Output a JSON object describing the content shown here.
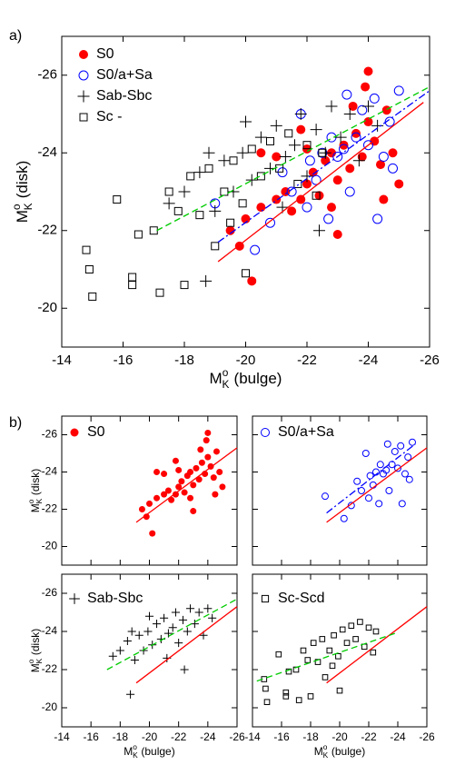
{
  "chart_data": [
    {
      "type": "scatter",
      "panel_label": "a)",
      "x_label": {
        "symbol": "M",
        "sup": "o",
        "sub": "K",
        "text": "(bulge)"
      },
      "y_label": {
        "symbol": "M",
        "sup": "o",
        "sub": "K",
        "text": "(disk)"
      },
      "xlim": [
        -14,
        -26
      ],
      "ylim": [
        -19,
        -27
      ],
      "xticks": [
        -14,
        -16,
        -18,
        -20,
        -22,
        -24,
        -26
      ],
      "yticks": [
        -20,
        -22,
        -24,
        -26
      ],
      "show_xtick_labels": true,
      "show_ytick_labels": true,
      "series": [
        {
          "name": "S0",
          "color": "#ff0000",
          "marker": "filled-circle",
          "x": [
            -20.2,
            -19.5,
            -20.0,
            -20.5,
            -21.0,
            -21.3,
            -21.5,
            -21.8,
            -22.0,
            -22.2,
            -22.4,
            -22.6,
            -22.8,
            -23.0,
            -23.2,
            -23.4,
            -23.6,
            -23.8,
            -24.0,
            -24.0,
            -24.2,
            -24.4,
            -24.6,
            -24.8,
            -25.0,
            -23.0,
            -22.0,
            -21.0,
            -20.5,
            -23.5,
            -24.5,
            -22.8,
            -21.8,
            -19.8,
            -23.9
          ],
          "values": [
            -20.7,
            -22.0,
            -22.3,
            -22.6,
            -22.8,
            -23.0,
            -22.5,
            -22.8,
            -23.2,
            -23.5,
            -22.9,
            -23.8,
            -24.0,
            -23.3,
            -24.2,
            -23.6,
            -24.5,
            -23.9,
            -24.8,
            -26.1,
            -24.3,
            -23.7,
            -25.1,
            -24.0,
            -23.2,
            -21.9,
            -24.1,
            -23.9,
            -24.0,
            -25.2,
            -22.8,
            -22.6,
            -24.6,
            -21.6,
            -25.7
          ]
        },
        {
          "name": "S0/a+Sa",
          "color": "#0000ff",
          "marker": "circle",
          "x": [
            -20.3,
            -19.0,
            -20.8,
            -21.5,
            -22.0,
            -22.3,
            -22.5,
            -22.7,
            -23.0,
            -23.2,
            -23.4,
            -23.6,
            -23.8,
            -24.0,
            -24.2,
            -24.5,
            -24.8,
            -25.0,
            -24.3,
            -21.8,
            -23.3,
            -22.8,
            -21.2,
            -24.7,
            -22.1
          ],
          "values": [
            -21.5,
            -22.7,
            -22.2,
            -23.0,
            -22.6,
            -23.3,
            -24.0,
            -22.3,
            -23.9,
            -24.1,
            -23.0,
            -24.4,
            -25.1,
            -24.2,
            -25.4,
            -23.9,
            -23.6,
            -25.6,
            -22.3,
            -25.0,
            -25.5,
            -24.4,
            -23.5,
            -24.8,
            -23.8
          ]
        },
        {
          "name": "Sab-Sbc",
          "color": "#000000",
          "marker": "plus",
          "x": [
            -18.7,
            -17.5,
            -18.0,
            -18.5,
            -19.0,
            -19.3,
            -19.6,
            -19.9,
            -20.2,
            -20.5,
            -20.8,
            -21.0,
            -21.3,
            -21.6,
            -21.8,
            -22.0,
            -22.3,
            -22.6,
            -22.8,
            -23.1,
            -23.4,
            -23.7,
            -24.0,
            -24.3,
            -21.2,
            -22.4,
            -20.0,
            -18.8
          ],
          "values": [
            -20.7,
            -22.7,
            -23.0,
            -23.5,
            -22.5,
            -23.8,
            -23.0,
            -24.0,
            -23.3,
            -24.4,
            -23.6,
            -24.7,
            -23.9,
            -24.2,
            -25.0,
            -23.4,
            -24.6,
            -24.0,
            -25.2,
            -24.4,
            -25.0,
            -23.8,
            -25.2,
            -24.7,
            -22.6,
            -22.0,
            -24.8,
            -24.0
          ]
        },
        {
          "name": "Sc -",
          "color": "#000000",
          "marker": "square",
          "x": [
            -14.8,
            -14.9,
            -15.0,
            -15.8,
            -16.3,
            -16.3,
            -16.5,
            -17.0,
            -17.2,
            -17.5,
            -17.8,
            -18.0,
            -18.2,
            -18.5,
            -18.8,
            -19.0,
            -19.3,
            -19.6,
            -19.9,
            -20.2,
            -20.5,
            -20.8,
            -21.1,
            -21.4,
            -21.7,
            -22.0,
            -22.3,
            -20.0,
            -19.5,
            -22.5
          ],
          "values": [
            -21.5,
            -21.0,
            -20.3,
            -22.8,
            -20.8,
            -20.6,
            -21.9,
            -22.0,
            -20.4,
            -23.0,
            -22.5,
            -20.6,
            -23.4,
            -22.4,
            -23.6,
            -21.6,
            -23.0,
            -23.8,
            -22.7,
            -24.1,
            -23.4,
            -24.3,
            -23.6,
            -24.5,
            -23.2,
            -24.2,
            -22.9,
            -20.9,
            -22.2,
            -24.0
          ]
        }
      ],
      "lines": [
        {
          "color": "#ff0000",
          "dash": "solid",
          "x": [
            -19.1,
            -25.8
          ],
          "values": [
            -21.2,
            -25.3
          ]
        },
        {
          "color": "#0000ff",
          "dash": "dashdot",
          "x": [
            -19.1,
            -26
          ],
          "values": [
            -21.7,
            -25.6
          ]
        },
        {
          "color": "#00cc00",
          "dash": "dashed",
          "x": [
            -17.1,
            -26
          ],
          "values": [
            -22.0,
            -25.7
          ]
        }
      ]
    },
    {
      "type": "scatter",
      "panel_label": "b)",
      "y_label": {
        "symbol": "M",
        "sup": "o",
        "sub": "K",
        "text": "(disk)"
      },
      "xlim": [
        -14,
        -26
      ],
      "ylim": [
        -19,
        -27
      ],
      "xticks": [
        -14,
        -16,
        -18,
        -20,
        -22,
        -24,
        -26
      ],
      "yticks": [
        -20,
        -22,
        -24,
        -26
      ],
      "show_xtick_labels": false,
      "show_ytick_labels": true,
      "series": [
        {
          "name": "S0",
          "color": "#ff0000",
          "marker": "filled-circle",
          "x": [
            -20.2,
            -19.5,
            -20.0,
            -20.5,
            -21.0,
            -21.3,
            -21.5,
            -21.8,
            -22.0,
            -22.2,
            -22.4,
            -22.6,
            -22.8,
            -23.0,
            -23.2,
            -23.4,
            -23.6,
            -23.8,
            -24.0,
            -24.0,
            -24.2,
            -24.4,
            -24.6,
            -24.8,
            -25.0,
            -23.0,
            -22.0,
            -21.0,
            -20.5,
            -23.5,
            -24.5,
            -22.8,
            -21.8,
            -19.8,
            -23.9
          ],
          "values": [
            -20.7,
            -22.0,
            -22.3,
            -22.6,
            -22.8,
            -23.0,
            -22.5,
            -22.8,
            -23.2,
            -23.5,
            -22.9,
            -23.8,
            -24.0,
            -23.3,
            -24.2,
            -23.6,
            -24.5,
            -23.9,
            -24.8,
            -26.1,
            -24.3,
            -23.7,
            -25.1,
            -24.0,
            -23.2,
            -21.9,
            -24.1,
            -23.9,
            -24.0,
            -25.2,
            -22.8,
            -22.6,
            -24.6,
            -21.6,
            -25.7
          ]
        }
      ],
      "lines": [
        {
          "color": "#ff0000",
          "dash": "solid",
          "x": [
            -19.1,
            -26
          ],
          "values": [
            -21.3,
            -25.3
          ]
        }
      ]
    },
    {
      "type": "scatter",
      "xlim": [
        -14,
        -26
      ],
      "ylim": [
        -19,
        -27
      ],
      "xticks": [
        -14,
        -16,
        -18,
        -20,
        -22,
        -24,
        -26
      ],
      "yticks": [
        -20,
        -22,
        -24,
        -26
      ],
      "show_xtick_labels": false,
      "show_ytick_labels": false,
      "series": [
        {
          "name": "S0/a+Sa",
          "color": "#0000ff",
          "marker": "circle",
          "x": [
            -20.3,
            -19.0,
            -20.8,
            -21.5,
            -22.0,
            -22.3,
            -22.5,
            -22.7,
            -23.0,
            -23.2,
            -23.4,
            -23.6,
            -23.8,
            -24.0,
            -24.2,
            -24.5,
            -24.8,
            -25.0,
            -24.3,
            -21.8,
            -23.3,
            -22.8,
            -21.2,
            -24.7,
            -22.1
          ],
          "values": [
            -21.5,
            -22.7,
            -22.2,
            -23.0,
            -22.6,
            -23.3,
            -24.0,
            -22.3,
            -23.9,
            -24.1,
            -23.0,
            -24.4,
            -25.1,
            -24.2,
            -25.4,
            -23.9,
            -23.6,
            -25.6,
            -22.3,
            -25.0,
            -25.5,
            -24.4,
            -23.5,
            -24.8,
            -23.8
          ]
        }
      ],
      "lines": [
        {
          "color": "#ff0000",
          "dash": "solid",
          "x": [
            -19.1,
            -26
          ],
          "values": [
            -21.3,
            -25.3
          ]
        },
        {
          "color": "#0000ff",
          "dash": "dashdot",
          "x": [
            -19.1,
            -25.2
          ],
          "values": [
            -21.8,
            -25.5
          ]
        }
      ]
    },
    {
      "type": "scatter",
      "x_label": {
        "symbol": "M",
        "sup": "o",
        "sub": "K",
        "text": "(bulge)"
      },
      "y_label": {
        "symbol": "M",
        "sup": "o",
        "sub": "K",
        "text": "(disk)"
      },
      "xlim": [
        -14,
        -26
      ],
      "ylim": [
        -19,
        -27
      ],
      "xticks": [
        -14,
        -16,
        -18,
        -20,
        -22,
        -24,
        -26
      ],
      "yticks": [
        -20,
        -22,
        -24,
        -26
      ],
      "show_xtick_labels": true,
      "show_ytick_labels": true,
      "series": [
        {
          "name": "Sab-Sbc",
          "color": "#000000",
          "marker": "plus",
          "x": [
            -18.7,
            -17.5,
            -18.0,
            -18.5,
            -19.0,
            -19.3,
            -19.6,
            -19.9,
            -20.2,
            -20.5,
            -20.8,
            -21.0,
            -21.3,
            -21.6,
            -21.8,
            -22.0,
            -22.3,
            -22.6,
            -22.8,
            -23.1,
            -23.4,
            -23.7,
            -24.0,
            -24.3,
            -21.2,
            -22.4,
            -20.0,
            -18.8
          ],
          "values": [
            -20.7,
            -22.7,
            -23.0,
            -23.5,
            -22.5,
            -23.8,
            -23.0,
            -24.0,
            -23.3,
            -24.4,
            -23.6,
            -24.7,
            -23.9,
            -24.2,
            -25.0,
            -23.4,
            -24.6,
            -24.0,
            -25.2,
            -24.4,
            -25.0,
            -23.8,
            -25.2,
            -24.7,
            -22.6,
            -22.0,
            -24.8,
            -24.0
          ]
        }
      ],
      "lines": [
        {
          "color": "#ff0000",
          "dash": "solid",
          "x": [
            -19.1,
            -26
          ],
          "values": [
            -21.3,
            -25.3
          ]
        },
        {
          "color": "#00cc00",
          "dash": "dashed",
          "x": [
            -17.1,
            -26
          ],
          "values": [
            -22.0,
            -25.7
          ]
        }
      ]
    },
    {
      "type": "scatter",
      "x_label": {
        "symbol": "M",
        "sup": "o",
        "sub": "K",
        "text": "(bulge)"
      },
      "xlim": [
        -14,
        -26
      ],
      "ylim": [
        -19,
        -27
      ],
      "xticks": [
        -14,
        -16,
        -18,
        -20,
        -22,
        -24,
        -26
      ],
      "yticks": [
        -20,
        -22,
        -24,
        -26
      ],
      "show_xtick_labels": true,
      "show_ytick_labels": false,
      "series": [
        {
          "name": "Sc-Scd",
          "color": "#000000",
          "marker": "square",
          "x": [
            -14.8,
            -14.9,
            -15.0,
            -15.8,
            -16.3,
            -16.3,
            -16.5,
            -17.0,
            -17.2,
            -17.5,
            -17.8,
            -18.0,
            -18.2,
            -18.5,
            -18.8,
            -19.0,
            -19.3,
            -19.6,
            -19.9,
            -20.2,
            -20.5,
            -20.8,
            -21.1,
            -21.4,
            -21.7,
            -22.0,
            -22.3,
            -20.0,
            -19.5,
            -22.5
          ],
          "values": [
            -21.5,
            -21.0,
            -20.3,
            -22.8,
            -20.8,
            -20.6,
            -21.9,
            -22.0,
            -20.4,
            -23.0,
            -22.5,
            -20.6,
            -23.4,
            -22.4,
            -23.6,
            -21.6,
            -23.0,
            -23.8,
            -22.7,
            -24.1,
            -23.4,
            -24.3,
            -23.6,
            -24.5,
            -23.2,
            -24.2,
            -22.9,
            -20.9,
            -22.2,
            -24.0
          ]
        }
      ],
      "lines": [
        {
          "color": "#ff0000",
          "dash": "solid",
          "x": [
            -19.1,
            -26
          ],
          "values": [
            -21.3,
            -25.3
          ]
        },
        {
          "color": "#00cc00",
          "dash": "dashed",
          "x": [
            -14.3,
            -23.8
          ],
          "values": [
            -21.4,
            -23.9
          ]
        }
      ]
    }
  ]
}
